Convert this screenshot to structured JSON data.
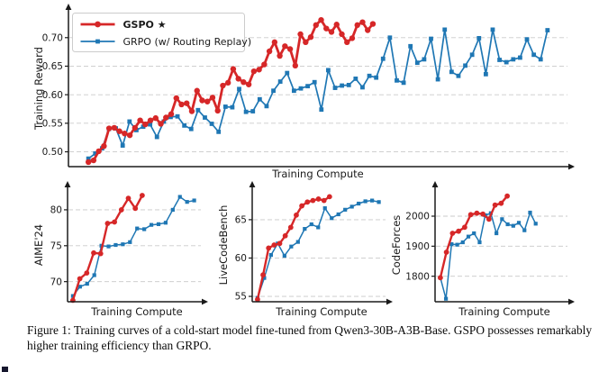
{
  "caption": "Figure 1: Training curves of a cold-start model fine-tuned from Qwen3-30B-A3B-Base. GSPO possesses remarkably higher training efficiency than GRPO.",
  "colors": {
    "gspo": "#d62728",
    "grpo": "#1f77b4",
    "grid": "#c9c9c9",
    "axis": "#1a1a1a",
    "text": "#1a1a1a"
  },
  "legend": {
    "items": [
      {
        "label": "GSPO ★",
        "series": "gspo"
      },
      {
        "label": "GRPO (w/ Routing Replay)",
        "series": "grpo"
      }
    ]
  },
  "chart_data": [
    {
      "id": "training-reward",
      "type": "line",
      "title": "",
      "xlabel": "Training Compute",
      "ylabel": "Training Reward",
      "ytick_labels": [
        "0.50",
        "0.55",
        "0.60",
        "0.65",
        "0.70"
      ],
      "ytick_values": [
        0.5,
        0.55,
        0.6,
        0.65,
        0.7
      ],
      "ylim": [
        0.474,
        0.747
      ],
      "grid": true,
      "legend_visible": true,
      "legend_position": "upper-left",
      "series": [
        {
          "name": "GSPO",
          "key": "gspo",
          "marker": "circle",
          "end_frac": 0.61,
          "values": [
            0.482,
            0.485,
            0.501,
            0.51,
            0.541,
            0.542,
            0.536,
            0.532,
            0.529,
            0.542,
            0.555,
            0.548,
            0.555,
            0.559,
            0.549,
            0.56,
            0.566,
            0.594,
            0.583,
            0.585,
            0.571,
            0.607,
            0.59,
            0.588,
            0.595,
            0.572,
            0.616,
            0.621,
            0.645,
            0.628,
            0.622,
            0.618,
            0.641,
            0.644,
            0.653,
            0.676,
            0.692,
            0.668,
            0.685,
            0.68,
            0.651,
            0.706,
            0.692,
            0.701,
            0.722,
            0.731,
            0.716,
            0.71,
            0.723,
            0.706,
            0.692,
            0.699,
            0.722,
            0.727,
            0.713,
            0.724
          ]
        },
        {
          "name": "GRPO (w/ Routing Replay)",
          "key": "grpo",
          "marker": "square",
          "end_frac": 0.96,
          "values": [
            0.488,
            0.497,
            0.506,
            0.54,
            0.541,
            0.511,
            0.553,
            0.538,
            0.544,
            0.548,
            0.526,
            0.553,
            0.561,
            0.562,
            0.546,
            0.54,
            0.573,
            0.56,
            0.549,
            0.535,
            0.579,
            0.578,
            0.61,
            0.57,
            0.571,
            0.592,
            0.58,
            0.607,
            0.623,
            0.638,
            0.607,
            0.611,
            0.615,
            0.622,
            0.574,
            0.643,
            0.612,
            0.616,
            0.617,
            0.628,
            0.613,
            0.633,
            0.63,
            0.663,
            0.7,
            0.625,
            0.621,
            0.685,
            0.656,
            0.662,
            0.698,
            0.627,
            0.714,
            0.64,
            0.633,
            0.651,
            0.67,
            0.699,
            0.636,
            0.714,
            0.661,
            0.657,
            0.662,
            0.665,
            0.697,
            0.67,
            0.662,
            0.713
          ]
        }
      ]
    },
    {
      "id": "aime24",
      "type": "line",
      "title": "",
      "xlabel": "Training Compute",
      "ylabel": "AIME'24",
      "ytick_labels": [
        "70",
        "75",
        "80"
      ],
      "ytick_values": [
        70,
        75,
        80
      ],
      "ylim": [
        67.2,
        83.0
      ],
      "grid": true,
      "legend_visible": false,
      "series": [
        {
          "name": "GSPO",
          "key": "gspo",
          "marker": "circle",
          "end_frac": 0.56,
          "values": [
            67.4,
            70.4,
            71.2,
            74.0,
            73.9,
            78.1,
            78.3,
            80.0,
            81.6,
            80.2,
            82.0
          ]
        },
        {
          "name": "GRPO (w/ Routing Replay)",
          "key": "grpo",
          "marker": "square",
          "end_frac": 0.95,
          "values": [
            68.0,
            69.3,
            69.7,
            70.9,
            75.0,
            74.9,
            75.1,
            75.2,
            75.5,
            77.4,
            77.3,
            77.9,
            78.0,
            78.2,
            80.0,
            81.8,
            81.1,
            81.3
          ]
        }
      ]
    },
    {
      "id": "livecodebench",
      "type": "line",
      "title": "",
      "xlabel": "Training Compute",
      "ylabel": "LiveCodeBench",
      "ytick_labels": [
        "55",
        "60",
        "65"
      ],
      "ytick_values": [
        55,
        60,
        65
      ],
      "ylim": [
        54.3,
        69.1
      ],
      "grid": true,
      "legend_visible": false,
      "series": [
        {
          "name": "GSPO",
          "key": "gspo",
          "marker": "circle",
          "end_frac": 0.58,
          "values": [
            54.6,
            57.8,
            61.3,
            61.7,
            61.9,
            62.9,
            64.0,
            65.6,
            66.8,
            67.3,
            67.5,
            67.7,
            67.5,
            68.0
          ]
        },
        {
          "name": "GRPO (w/ Routing Replay)",
          "key": "grpo",
          "marker": "square",
          "end_frac": 0.95,
          "values": [
            54.8,
            57.4,
            60.4,
            61.9,
            60.3,
            61.5,
            62.1,
            63.8,
            64.4,
            64.0,
            66.5,
            65.2,
            65.7,
            66.3,
            66.7,
            67.1,
            67.4,
            67.5,
            67.3
          ]
        }
      ]
    },
    {
      "id": "codeforces",
      "type": "line",
      "title": "",
      "xlabel": "Training Compute",
      "ylabel": "CodeForces",
      "ytick_labels": [
        "1800",
        "1900",
        "2000"
      ],
      "ytick_values": [
        1800,
        1900,
        2000
      ],
      "ylim": [
        1715,
        2093
      ],
      "grid": true,
      "legend_visible": false,
      "series": [
        {
          "name": "GSPO",
          "key": "gspo",
          "marker": "circle",
          "end_frac": 0.545,
          "values": [
            1795,
            1880,
            1943,
            1950,
            1963,
            2005,
            2010,
            2007,
            1990,
            2037,
            2043,
            2067
          ]
        },
        {
          "name": "GRPO (w/ Routing Replay)",
          "key": "grpo",
          "marker": "square",
          "end_frac": 0.76,
          "values": [
            1795,
            1725,
            1907,
            1905,
            1913,
            1932,
            1943,
            1913,
            2003,
            2010,
            1943,
            1990,
            1973,
            1968,
            1978,
            1953,
            2012,
            1975
          ]
        }
      ]
    }
  ]
}
